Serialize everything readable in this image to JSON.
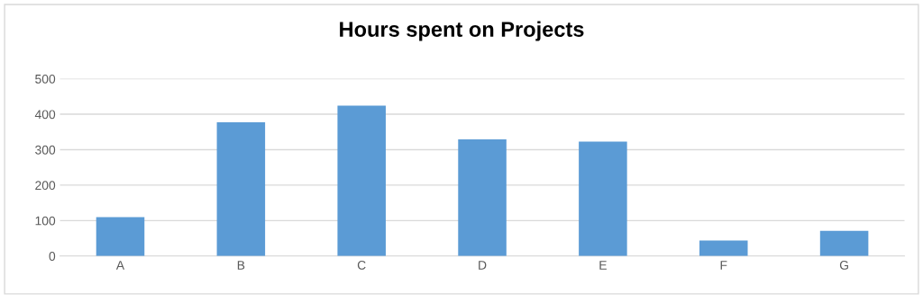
{
  "chart_data": {
    "type": "bar",
    "title": "Hours spent on Projects",
    "categories": [
      "A",
      "B",
      "C",
      "D",
      "E",
      "F",
      "G"
    ],
    "values": [
      110,
      377,
      424,
      329,
      323,
      44,
      71
    ],
    "color": "#5b9bd5",
    "ylim": [
      0,
      500
    ],
    "yticks": [
      0,
      100,
      200,
      300,
      400,
      500
    ],
    "grid": "y"
  }
}
